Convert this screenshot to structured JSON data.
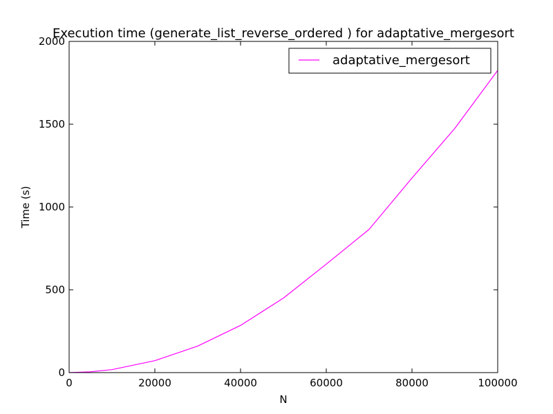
{
  "chart_data": {
    "type": "line",
    "title": "Execution time (generate_list_reverse_ordered ) for adaptative_mergesort",
    "xlabel": "N",
    "ylabel": "Time (s)",
    "xlim": [
      0,
      100000
    ],
    "ylim": [
      0,
      2000
    ],
    "xticks": [
      0,
      20000,
      40000,
      60000,
      80000,
      100000
    ],
    "yticks": [
      0,
      500,
      1000,
      1500,
      2000
    ],
    "grid": false,
    "legend_position": "top-right",
    "series": [
      {
        "name": "adaptative_mergesort",
        "color": "#ff00ff",
        "x": [
          0,
          5000,
          10000,
          20000,
          30000,
          40000,
          50000,
          60000,
          70000,
          80000,
          90000,
          100000
        ],
        "y": [
          0,
          5,
          18,
          72,
          160,
          285,
          450,
          655,
          865,
          1175,
          1475,
          1825
        ]
      }
    ]
  }
}
